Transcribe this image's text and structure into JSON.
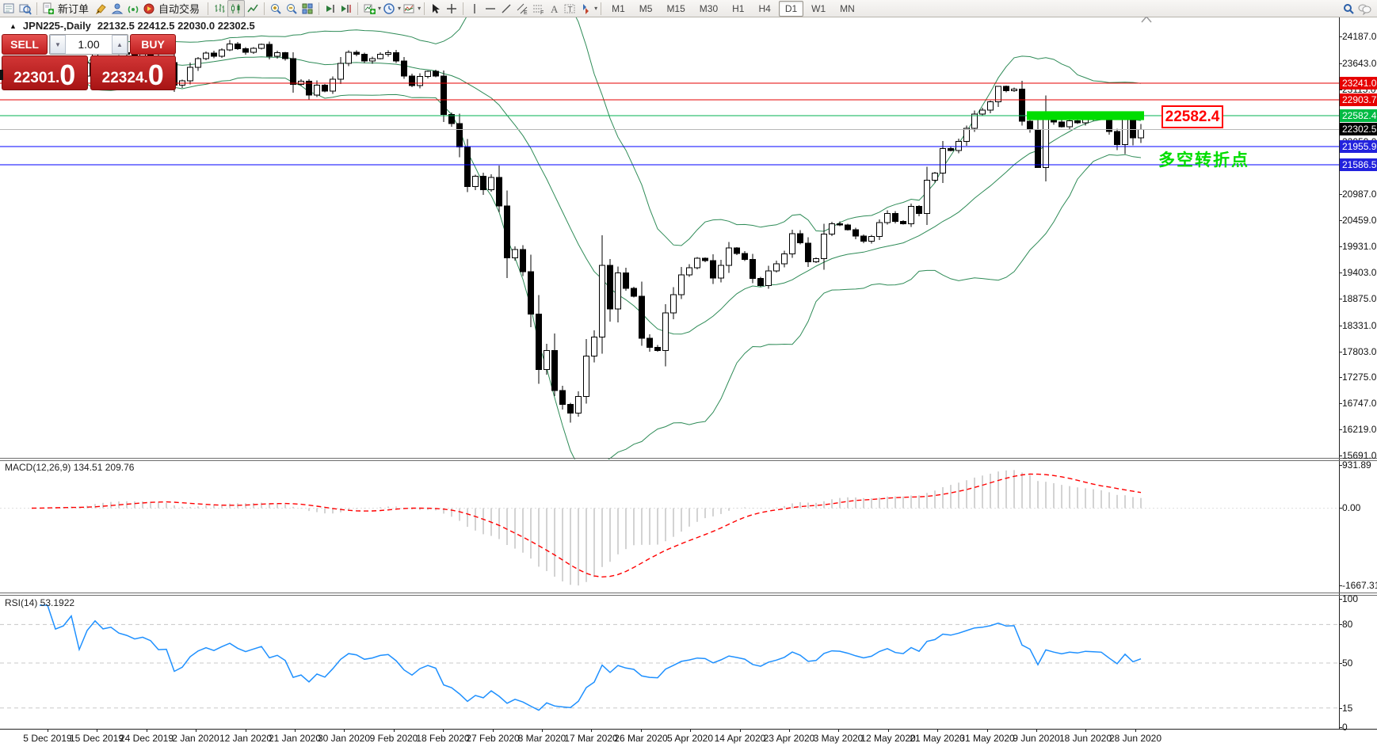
{
  "toolbar": {
    "new_order_label": "新订单",
    "autotrading_label": "自动交易",
    "timeframes": [
      "M1",
      "M5",
      "M15",
      "M30",
      "H1",
      "H4",
      "D1",
      "W1",
      "MN"
    ],
    "active_timeframe": "D1"
  },
  "quote_panel": {
    "sell_label": "SELL",
    "buy_label": "BUY",
    "volume": "1.00",
    "sell_price_main": "22301",
    "sell_price_sep": ".",
    "sell_price_big": "0",
    "buy_price_main": "22324",
    "buy_price_sep": ".",
    "buy_price_big": "0"
  },
  "chart_header": {
    "collapse_glyph": "▲",
    "title": "JPN225-,Daily",
    "ohlc_text": "22132.5 22412.5 22030.0 22302.5"
  },
  "macd_panel": {
    "label": "MACD(12,26,9) 134.51 209.76"
  },
  "rsi_panel": {
    "label": "RSI(14) 53.1922"
  },
  "chart_data": {
    "type": "candlestick",
    "symbol": "JPN225-",
    "period": "Daily",
    "last_ohlc": {
      "open": 22132.5,
      "high": 22412.5,
      "low": 22030.0,
      "close": 22302.5
    },
    "ylim": [
      15610,
      24575
    ],
    "open_first": 23250,
    "closes": [
      23300,
      23350,
      23430,
      23390,
      23410,
      23520,
      23390,
      23650,
      23950,
      23870,
      23930,
      23860,
      23830,
      23780,
      23840,
      23790,
      23650,
      23660,
      23200,
      23290,
      23560,
      23740,
      23850,
      23790,
      23920,
      24040,
      23940,
      23870,
      23950,
      24030,
      23790,
      23860,
      23740,
      23220,
      23280,
      23000,
      23205,
      23080,
      23320,
      23640,
      23870,
      23830,
      23690,
      23740,
      23830,
      23860,
      23690,
      23390,
      23190,
      23380,
      23479,
      23386,
      22605,
      22420,
      21948,
      21143,
      21350,
      21080,
      21330,
      20750,
      19700,
      19870,
      19420,
      18560,
      17430,
      17820,
      17010,
      16730,
      16550,
      16890,
      17710,
      18090,
      19550,
      18660,
      19390,
      19080,
      18920,
      18070,
      17880,
      17820,
      18580,
      18950,
      19350,
      19500,
      19690,
      19640,
      19290,
      19550,
      19900,
      19790,
      19670,
      19280,
      19140,
      19430,
      19580,
      19780,
      20190,
      20000,
      19620,
      19680,
      20180,
      20390,
      20366,
      20267,
      20137,
      20037,
      20133,
      20411,
      20595,
      20434,
      20388,
      20741,
      20595,
      21271,
      21419,
      21916,
      21878,
      22062,
      22326,
      22614,
      22696,
      22864,
      23178,
      23091,
      23125,
      22473,
      22305,
      21531,
      22582,
      22455,
      22355,
      22479,
      22437,
      22550,
      22534,
      22512,
      22260,
      21995,
      22512,
      22132.5,
      22302.5
    ],
    "high_overrides": {
      "25": 24116,
      "122": 23185,
      "140": 22412.5
    },
    "low_overrides": {
      "68": 16360,
      "127": 21530,
      "140": 22030.0
    },
    "price_ticks": [
      24187.0,
      23643.0,
      23115.0,
      22587.0,
      22059.0,
      21531.0,
      20987.0,
      20459.0,
      19931.0,
      19403.0,
      18875.0,
      18331.0,
      17803.0,
      17275.0,
      16747.0,
      16219.0,
      15691.0
    ],
    "x_labels": [
      "5 Dec 2019",
      "15 Dec 2019",
      "24 Dec 2019",
      "2 Jan 2020",
      "12 Jan 2020",
      "21 Jan 2020",
      "30 Jan 2020",
      "9 Feb 2020",
      "18 Feb 2020",
      "27 Feb 2020",
      "8 Mar 2020",
      "17 Mar 2020",
      "26 Mar 2020",
      "5 Apr 2020",
      "14 Apr 2020",
      "23 Apr 2020",
      "3 May 2020",
      "12 May 2020",
      "21 May 2020",
      "31 May 2020",
      "9 Jun 2020",
      "18 Jun 2020",
      "28 Jun 2020"
    ],
    "candle_colors": {
      "bull_fill": "#ffffff",
      "bear_fill": "#000000",
      "outline": "#000000"
    },
    "indicators": {
      "bollinger": {
        "period": 20,
        "deviation": 2,
        "color": "#2e8b57"
      },
      "macd": {
        "fast": 12,
        "slow": 26,
        "signal": 9,
        "ylim": [
          -1855,
          1017
        ],
        "tick_labels": [
          "931.89",
          "0.00",
          "-1667.31"
        ],
        "tick_values": [
          931.89,
          0,
          -1667.31
        ],
        "histogram_color": "#c8c8c8",
        "signal_color": "#ff0000"
      },
      "rsi": {
        "period": 14,
        "ylim": [
          0,
          100
        ],
        "ticks": [
          100,
          80,
          50,
          15,
          0
        ],
        "levels": [
          80,
          50,
          15
        ],
        "color": "#1e90ff"
      }
    },
    "levels": [
      {
        "price": 23241.0,
        "label": "23241.0",
        "line_color": "#e60000",
        "label_bg": "#e60000"
      },
      {
        "price": 22903.7,
        "label": "22903.7",
        "line_color": "#e60000",
        "label_bg": "#e60000"
      },
      {
        "price": 22582.4,
        "label": "22582.4",
        "line_color": "#00b050",
        "label_bg": "#00bb44"
      },
      {
        "price": 21955.9,
        "label": "21955.9",
        "line_color": "#0000ff",
        "label_bg": "#2222dd"
      },
      {
        "price": 21586.5,
        "label": "21586.5",
        "line_color": "#0000ff",
        "label_bg": "#2222dd"
      }
    ],
    "current_price": {
      "value": 22302.5,
      "label": "22302.5",
      "line_color": "#b8b8b8",
      "label_bg": "#000000"
    },
    "annotations": {
      "rect": {
        "from_index": 126,
        "to_index": 140,
        "price_top": 22672,
        "price_bottom": 22492,
        "color": "#00dd00"
      },
      "price_box": {
        "text": "22582.4",
        "color": "#ff0000"
      },
      "note": {
        "text": "多空转折点",
        "color": "#00dd00"
      }
    }
  }
}
